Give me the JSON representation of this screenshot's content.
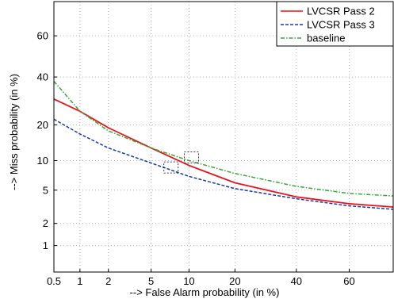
{
  "chart_data": {
    "type": "line",
    "title": "",
    "scale": "normal-deviate (DET)",
    "xlabel": "--> False Alarm probability (in %)",
    "ylabel": "--> Miss probability (in %)",
    "xlim": [
      0.5,
      75
    ],
    "ylim": [
      0.4,
      75
    ],
    "xticks": [
      0.5,
      1,
      2,
      5,
      10,
      20,
      40,
      60
    ],
    "yticks": [
      1,
      2,
      5,
      10,
      20,
      40,
      60
    ],
    "grid": true,
    "legend_position": "top-right",
    "series": [
      {
        "name": "LVCSR Pass 2",
        "color": "#e8141c",
        "style": "solid",
        "x": [
          0.5,
          1,
          2,
          5,
          10,
          20,
          40,
          60,
          75
        ],
        "y": [
          30,
          25,
          19,
          13,
          9,
          6,
          4.2,
          3.5,
          3.2
        ]
      },
      {
        "name": "LVCSR Pass 3",
        "color": "#1a3aa8",
        "style": "dashed",
        "x": [
          0.5,
          1,
          2,
          5,
          10,
          20,
          40,
          60,
          75
        ],
        "y": [
          22,
          17,
          13,
          9.5,
          7,
          5.2,
          4,
          3.3,
          3
        ]
      },
      {
        "name": "baseline",
        "color": "#34a834",
        "style": "dashdot",
        "x": [
          0.5,
          1,
          2,
          5,
          10,
          20,
          40,
          60,
          75
        ],
        "y": [
          38,
          25,
          18,
          13,
          10,
          7.5,
          5.5,
          4.6,
          4.3
        ]
      }
    ]
  }
}
